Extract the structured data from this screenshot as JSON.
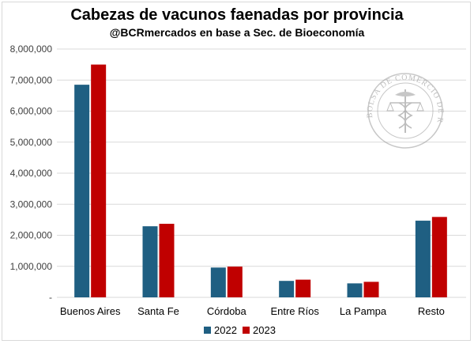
{
  "chart_data": {
    "type": "bar",
    "title": "Cabezas de vacunos faenadas por provincia",
    "subtitle": "@BCRmercados en base a Sec. de Bioeconomía",
    "xlabel": "",
    "ylabel": "",
    "categories": [
      "Buenos Aires",
      "Santa Fe",
      "Córdoba",
      "Entre Ríos",
      "La Pampa",
      "Resto"
    ],
    "series": [
      {
        "name": "2022",
        "color": "#1f5f82",
        "values": [
          6850000,
          2290000,
          960000,
          530000,
          450000,
          2470000
        ]
      },
      {
        "name": "2023",
        "color": "#c00000",
        "values": [
          7500000,
          2370000,
          990000,
          570000,
          500000,
          2590000
        ]
      }
    ],
    "ylim": [
      0,
      8000000
    ],
    "yticks": [
      0,
      1000000,
      2000000,
      3000000,
      4000000,
      5000000,
      6000000,
      7000000,
      8000000
    ],
    "ytick_labels": [
      "-",
      "1,000,000",
      "2,000,000",
      "3,000,000",
      "4,000,000",
      "5,000,000",
      "6,000,000",
      "7,000,000",
      "8,000,000"
    ],
    "grid": true,
    "legend_position": "bottom-center",
    "watermark": {
      "type": "seal",
      "text": "BOLSA DE COMERCIO DE ROSARIO"
    }
  }
}
